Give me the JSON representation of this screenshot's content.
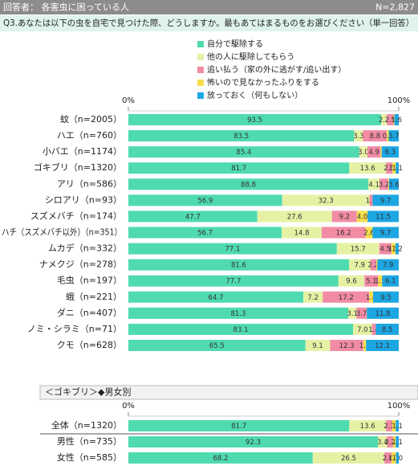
{
  "header": {
    "respondents": "回答者： 各害虫に困っている人",
    "n": "N=2,827",
    "question": "Q3.あなたは以下の虫を自宅で見つけた際、どうしますか。最もあてはまるものをお選びください（単一回答）"
  },
  "chart_data": [
    {
      "type": "stacked-bar-horizontal",
      "categories": [
        "蚊（n=2005）",
        "ハエ（n=760）",
        "小バエ（n=1174）",
        "ゴキブリ（n=1320）",
        "アリ（n=586）",
        "シロアリ（n=93）",
        "スズメバチ（n=174）",
        "ハチ（スズメバチ以外）（n=351）",
        "ムカデ（n=332）",
        "ナメクジ（n=278）",
        "毛虫（n=197）",
        "蛾（n=221）",
        "ダニ（n=407）",
        "ノミ・シラミ（n=71）",
        "クモ（n=628）"
      ],
      "xlim": [
        0,
        100
      ],
      "xticks": [
        {
          "value": 0,
          "label": "0%"
        },
        {
          "value": 100,
          "label": "100%"
        }
      ],
      "legend": "top-right",
      "series": [
        {
          "name": "自分で駆除する",
          "color": "#4fdab0",
          "values": [
            93.5,
            83.5,
            85.4,
            81.7,
            88.8,
            56.9,
            47.7,
            56.7,
            77.1,
            81.6,
            77.7,
            64.7,
            81.3,
            83.1,
            65.5
          ],
          "value_labels": [
            "93.5",
            "83.5",
            "85.4",
            "81.7",
            "88.8",
            "56.9",
            "47.7",
            "56.7",
            "77.1",
            "81.6",
            "77.7",
            "64.7",
            "81.3",
            "83.1",
            "65.5"
          ]
        },
        {
          "name": "他の人に駆除してもらう",
          "color": "#e6f1a4",
          "values": [
            2.1,
            3.3,
            3.0,
            13.6,
            4.1,
            32.3,
            27.6,
            14.8,
            15.7,
            7.9,
            9.6,
            7.2,
            3.1,
            7.0,
            9.1
          ],
          "value_labels": [
            "2.1",
            "3.3",
            "3.0",
            "13.6",
            "4.1",
            "32.3",
            "27.6",
            "14.8",
            "15.7",
            "7.9",
            "9.6",
            "7.2",
            "3.1",
            "7.0",
            "9.1"
          ]
        },
        {
          "name": "追い払う（家の外に逃がす/追い出す）",
          "color": "#f28ba4",
          "values": [
            2.5,
            8.8,
            4.9,
            2.3,
            3.2,
            1.1,
            9.2,
            16.2,
            4.5,
            2.2,
            5.1,
            17.2,
            3.7,
            1.4,
            12.3
          ],
          "value_labels": [
            "2.5",
            "8.8",
            "4.9",
            "2.3",
            "3.2",
            "1.1",
            "9.2",
            "16.2",
            "4.5",
            "2.2",
            "5.1",
            "17.2",
            "3.7",
            "1.4",
            "12.3"
          ]
        },
        {
          "name": "怖いので見なかったふりをする",
          "color": "#f6df4c",
          "values": [
            0.3,
            0.7,
            0.4,
            1.3,
            0.3,
            0,
            4.0,
            2.6,
            1.5,
            0.4,
            1.5,
            1.4,
            0.1,
            0,
            1.0
          ],
          "value_labels": [
            null,
            "0.7",
            null,
            "1.3",
            null,
            null,
            "4.0",
            "2.6",
            "1.5",
            null,
            "1.5",
            "1.4",
            null,
            null,
            "1.0"
          ]
        },
        {
          "name": "放っておく（何もしない）",
          "color": "#1ca6e2",
          "values": [
            1.6,
            3.7,
            6.3,
            1.1,
            3.6,
            9.7,
            11.5,
            9.7,
            1.2,
            7.9,
            6.1,
            9.5,
            11.8,
            8.5,
            12.1
          ],
          "value_labels": [
            "1.6",
            "3.7",
            "6.3",
            "1.1",
            "3.6",
            "9.7",
            "11.5",
            "9.7",
            "1.2",
            "7.9",
            "6.1",
            "9.5",
            "11.8",
            "8.5",
            "12.1"
          ]
        }
      ]
    },
    {
      "type": "stacked-bar-horizontal",
      "title": "＜ゴキブリ＞◆男女別",
      "categories": [
        "全体（n=1320）",
        "男性（n=735）",
        "女性（n=585）"
      ],
      "xlim": [
        0,
        100
      ],
      "xticks": [
        {
          "value": 0,
          "label": "0%"
        },
        {
          "value": 100,
          "label": "100%"
        }
      ],
      "series": [
        {
          "color": "#4fdab0",
          "values": [
            81.7,
            92.3,
            68.2
          ],
          "value_labels": [
            "81.7",
            "92.3",
            "68.2"
          ]
        },
        {
          "color": "#e6f1a4",
          "values": [
            13.6,
            3.4,
            26.5
          ],
          "value_labels": [
            "13.6",
            "3.4",
            "26.5"
          ]
        },
        {
          "color": "#f28ba4",
          "values": [
            2.3,
            2.2,
            2.6
          ],
          "value_labels": [
            "2.3",
            "2.2",
            "2.6"
          ]
        },
        {
          "color": "#f6df4c",
          "values": [
            1.3,
            1.0,
            1.7
          ],
          "value_labels": [
            null,
            null,
            "1.7"
          ]
        },
        {
          "color": "#1ca6e2",
          "values": [
            1.1,
            1.1,
            1.0
          ],
          "value_labels": [
            "1.1",
            "1.1",
            "1.0"
          ]
        }
      ]
    }
  ]
}
